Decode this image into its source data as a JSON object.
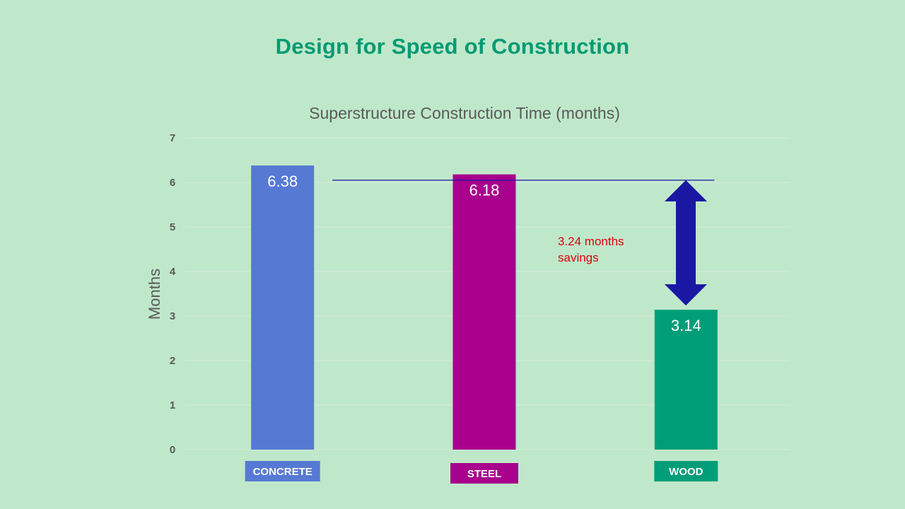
{
  "slide": {
    "title": "Design for Speed of Construction"
  },
  "chart_data": {
    "type": "bar",
    "title": "Superstructure Construction Time (months)",
    "xlabel": "",
    "ylabel": "Months",
    "ylim": [
      0,
      7
    ],
    "yticks": [
      0,
      1,
      2,
      3,
      4,
      5,
      6,
      7
    ],
    "grid": true,
    "legend": "none",
    "categories": [
      "CONCRETE",
      "STEEL",
      "WOOD"
    ],
    "values": [
      6.38,
      6.18,
      3.14
    ],
    "data_labels": [
      "6.38",
      "6.18",
      "3.14"
    ],
    "colors": [
      "#5679d4",
      "#a8008c",
      "#009e78"
    ],
    "reference_line_value": 6.05,
    "annotation": {
      "lines": [
        "3.24 months",
        "savings"
      ],
      "arrow_from": 6.05,
      "arrow_to": 3.14,
      "arrow_color": "#1a17a3",
      "text_color": "#e0000e"
    }
  }
}
